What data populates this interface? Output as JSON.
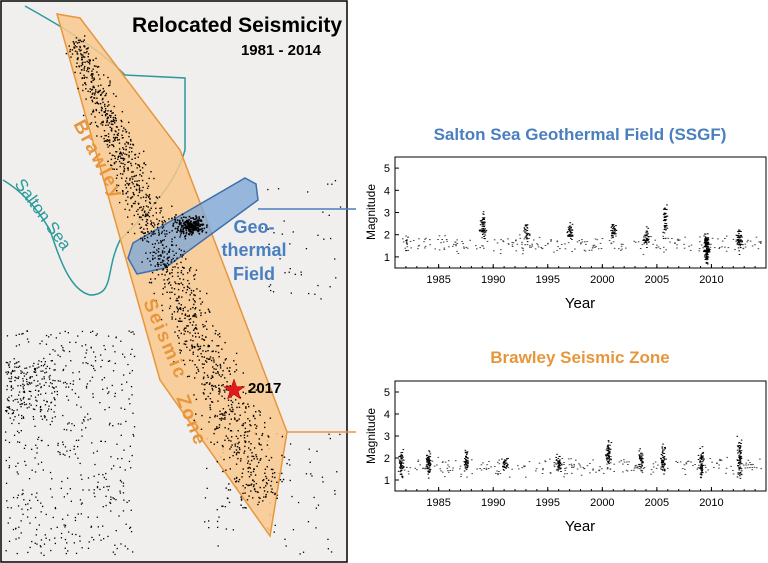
{
  "map": {
    "title": "Relocated Seismicity",
    "subtitle": "1981 - 2014",
    "labels": {
      "brawley": "Brawley",
      "seismic": "Seismic",
      "zone": "Zone",
      "salton_sea": "Salton Sea",
      "geo_line1": "Geo-",
      "geo_line2": "thermal",
      "geo_line3": "Field",
      "event_year": "2017"
    },
    "colors": {
      "background": "#f0efee",
      "zone_fill": "#f9c98d",
      "zone_stroke": "#e8963c",
      "geo_fill": "#7fa8d6",
      "geo_stroke": "#3f6fad",
      "shoreline": "#2a9a9a",
      "zone_text": "#e8963c",
      "geo_text": "#4a7fbf",
      "shoreline_text": "#2a9a9a",
      "star": "#e01b1b"
    }
  },
  "charts": {
    "ssgf": {
      "title": "Salton Sea Geothermal Field (SSGF)",
      "title_color": "#4a7fbf",
      "ylabel": "Magnitude",
      "xlabel": "Year"
    },
    "bsz": {
      "title": "Brawley Seismic Zone",
      "title_color": "#e8963c",
      "ylabel": "Magnitude",
      "xlabel": "Year"
    }
  },
  "chart_data": [
    {
      "type": "scatter",
      "title": "Salton Sea Geothermal Field (SSGF)",
      "xlabel": "Year",
      "ylabel": "Magnitude",
      "xlim": [
        1981,
        2015
      ],
      "ylim": [
        0.5,
        5.5
      ],
      "xticks": [
        1985,
        1990,
        1995,
        2000,
        2005,
        2010
      ],
      "yticks": [
        1,
        2,
        3,
        4,
        5
      ],
      "clusters": [
        {
          "x": 1982,
          "y": 1.6,
          "spread": 0.3,
          "n": 6
        },
        {
          "x": 1989,
          "y": 2.4,
          "spread": 0.6,
          "n": 60
        },
        {
          "x": 1993,
          "y": 2.2,
          "spread": 0.4,
          "n": 30
        },
        {
          "x": 1997,
          "y": 2.1,
          "spread": 0.4,
          "n": 40
        },
        {
          "x": 2001,
          "y": 2.2,
          "spread": 0.4,
          "n": 40
        },
        {
          "x": 2004,
          "y": 1.9,
          "spread": 0.4,
          "n": 40
        },
        {
          "x": 2005.7,
          "y": 2.6,
          "spread": 0.9,
          "n": 50
        },
        {
          "x": 2009.5,
          "y": 1.4,
          "spread": 0.6,
          "n": 150
        },
        {
          "x": 2012.5,
          "y": 1.8,
          "spread": 0.5,
          "n": 60
        }
      ]
    },
    {
      "type": "scatter",
      "title": "Brawley Seismic Zone",
      "xlabel": "Year",
      "ylabel": "Magnitude",
      "xlim": [
        1981,
        2015
      ],
      "ylim": [
        0.5,
        5.5
      ],
      "xticks": [
        1985,
        1990,
        1995,
        2000,
        2005,
        2010
      ],
      "yticks": [
        1,
        2,
        3,
        4,
        5
      ],
      "clusters": [
        {
          "x": 1981.5,
          "y": 1.8,
          "spread": 0.6,
          "n": 60
        },
        {
          "x": 1984,
          "y": 1.8,
          "spread": 0.5,
          "n": 60
        },
        {
          "x": 1987.5,
          "y": 1.9,
          "spread": 0.5,
          "n": 40
        },
        {
          "x": 1991,
          "y": 1.8,
          "spread": 0.4,
          "n": 30
        },
        {
          "x": 1996,
          "y": 1.8,
          "spread": 0.4,
          "n": 40
        },
        {
          "x": 2000.5,
          "y": 2.2,
          "spread": 0.6,
          "n": 60
        },
        {
          "x": 2003.5,
          "y": 1.9,
          "spread": 0.5,
          "n": 40
        },
        {
          "x": 2005.5,
          "y": 2.0,
          "spread": 0.6,
          "n": 50
        },
        {
          "x": 2009,
          "y": 1.8,
          "spread": 0.7,
          "n": 60
        },
        {
          "x": 2012.5,
          "y": 2.0,
          "spread": 0.9,
          "n": 70
        }
      ]
    }
  ]
}
